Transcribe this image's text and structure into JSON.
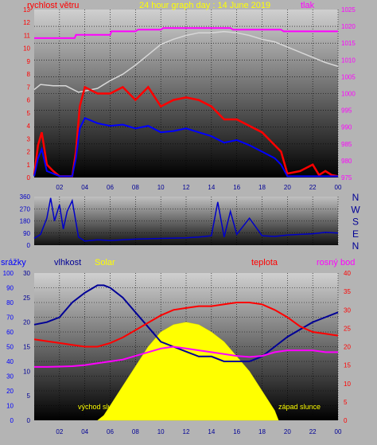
{
  "chart_data": [
    {
      "type": "line",
      "title": "24 hour graph day : 14 June 2019",
      "left_label": "rychlost větru",
      "right_label": "tlak",
      "x_ticks": [
        "02",
        "04",
        "06",
        "08",
        "10",
        "12",
        "14",
        "16",
        "18",
        "20",
        "22",
        "00"
      ],
      "left_ticks": [
        "0",
        "1",
        "2",
        "3",
        "4",
        "5",
        "6",
        "7",
        "8",
        "9",
        "10",
        "11",
        "12",
        "13"
      ],
      "right_ticks": [
        "975",
        "980",
        "985",
        "990",
        "995",
        "1000",
        "1005",
        "1010",
        "1015",
        "1020",
        "1025"
      ],
      "left_range": [
        0,
        13
      ],
      "right_range": [
        975,
        1025
      ],
      "series": [
        {
          "color": "#ff00ff",
          "x": [
            0,
            2,
            3.2,
            3.3,
            6,
            6.1,
            8,
            8.2,
            10,
            10.2,
            15.5,
            15.7,
            19.5,
            19.7,
            24
          ],
          "y": [
            1016.5,
            1016.5,
            1016.5,
            1017.5,
            1017.5,
            1018.5,
            1018.5,
            1019,
            1019,
            1019.5,
            1019.5,
            1019,
            1019,
            1018.5,
            1018.5
          ]
        },
        {
          "color": "#d8d8d8",
          "x": [
            0,
            0.5,
            1.5,
            2.5,
            3.5,
            4,
            5,
            6,
            7,
            8,
            9,
            10,
            11,
            12,
            13,
            14,
            15,
            16,
            17,
            18,
            19,
            20,
            21,
            22,
            23,
            24
          ],
          "y": [
            6.8,
            7.2,
            7.1,
            7.1,
            6.6,
            6.7,
            6.9,
            7.5,
            8,
            8.7,
            9.5,
            10.3,
            10.7,
            11,
            11.2,
            11.2,
            11.3,
            11.2,
            11,
            10.7,
            10.5,
            10.1,
            9.7,
            9.3,
            8.9,
            8.6
          ]
        },
        {
          "color": "#ff0000",
          "x": [
            0,
            0.3,
            0.6,
            1,
            1.5,
            2,
            2.5,
            3,
            3.3,
            3.6,
            4,
            5,
            6,
            7,
            8,
            9,
            10,
            11,
            12,
            13,
            14,
            15,
            16,
            17,
            18,
            19,
            19.5,
            20,
            21,
            22,
            22.5,
            23,
            23.5,
            24
          ],
          "y": [
            0.2,
            2.5,
            3.5,
            1,
            0.5,
            0.1,
            0.1,
            0.1,
            2,
            5.5,
            7,
            6.5,
            6.5,
            7,
            6,
            7,
            5.5,
            6,
            6.2,
            6,
            5.5,
            4.5,
            4.5,
            4,
            3.5,
            2.5,
            2,
            0.3,
            0.5,
            1,
            0.2,
            0.5,
            0.2,
            0.1
          ]
        },
        {
          "color": "#0000ff",
          "x": [
            0,
            0.3,
            0.6,
            1,
            1.5,
            2,
            2.5,
            3,
            3.3,
            3.6,
            4,
            5,
            6,
            7,
            8,
            9,
            10,
            11,
            12,
            13,
            14,
            15,
            16,
            17,
            18,
            19,
            19.5,
            20,
            21,
            22,
            23,
            24
          ],
          "y": [
            0.1,
            1.5,
            2.2,
            0.5,
            0.3,
            0.1,
            0.1,
            0.1,
            1.5,
            3.8,
            4.6,
            4.2,
            4,
            4.1,
            3.8,
            4,
            3.5,
            3.6,
            3.8,
            3.5,
            3.2,
            2.7,
            2.9,
            2.5,
            2,
            1.5,
            1,
            0.1,
            0.1,
            0.1,
            0.1,
            0.1
          ]
        }
      ]
    },
    {
      "type": "line",
      "y_ticks": [
        "0",
        "90",
        "180",
        "270",
        "360"
      ],
      "direction_ticks": [
        "N",
        "W",
        "S",
        "E",
        "N"
      ],
      "y_range": [
        0,
        360
      ],
      "series": [
        {
          "color": "#0000c8",
          "x": [
            0,
            0.5,
            1,
            1.3,
            1.6,
            2,
            2.3,
            2.6,
            3,
            3.5,
            4,
            5,
            6,
            8,
            10,
            12,
            13,
            14,
            14.5,
            15,
            15.5,
            16,
            17,
            18,
            19,
            20,
            21,
            22,
            23,
            24
          ],
          "y": [
            50,
            80,
            200,
            350,
            180,
            300,
            120,
            250,
            330,
            60,
            30,
            40,
            35,
            45,
            50,
            55,
            60,
            70,
            320,
            60,
            250,
            80,
            200,
            70,
            65,
            75,
            80,
            85,
            95,
            90
          ]
        }
      ]
    },
    {
      "type": "line",
      "labels": [
        "srážky",
        "vlhkost",
        "Solar",
        "teplota",
        "rosný bod"
      ],
      "annotations": [
        "východ slunce",
        "západ slunce"
      ],
      "far_left_ticks": [
        "0",
        "10",
        "20",
        "30",
        "40",
        "50",
        "60",
        "70",
        "80",
        "90",
        "100"
      ],
      "left_ticks": [
        "0",
        "5",
        "10",
        "15",
        "20",
        "25",
        "30"
      ],
      "right_ticks": [
        "0",
        "5",
        "10",
        "15",
        "20",
        "25",
        "30",
        "35",
        "40"
      ],
      "x_ticks": [
        "02",
        "04",
        "06",
        "08",
        "10",
        "12",
        "14",
        "16",
        "18",
        "20",
        "22",
        "00"
      ],
      "left_range": [
        0,
        30
      ],
      "right_range": [
        0,
        40
      ],
      "series": [
        {
          "name": "Solar",
          "color": "#ffff00",
          "x": [
            5,
            5.5,
            6,
            7,
            8,
            9,
            10,
            11,
            12,
            13,
            14,
            15,
            16,
            17,
            18,
            19,
            19.3
          ],
          "y": [
            0,
            1,
            3,
            7,
            11,
            15,
            18,
            19.5,
            20,
            19.5,
            18,
            16,
            13,
            10,
            6,
            2,
            0
          ]
        },
        {
          "name": "vlhkost",
          "color": "#000096",
          "x": [
            0,
            1,
            2,
            3,
            4,
            5,
            5.5,
            6,
            7,
            8,
            9,
            10,
            11,
            12,
            13,
            14,
            15,
            16,
            17,
            18,
            19,
            20,
            21,
            22,
            23,
            24
          ],
          "y": [
            19.5,
            20,
            21,
            24,
            26,
            27.5,
            27.5,
            27,
            25,
            22,
            19,
            16,
            15,
            14,
            13,
            13,
            12,
            12,
            12,
            13,
            15,
            17,
            18.5,
            20,
            21,
            22
          ]
        },
        {
          "name": "teplota",
          "color": "#ff0000",
          "x": [
            0,
            1,
            2,
            3,
            4,
            5,
            6,
            7,
            8,
            9,
            10,
            11,
            12,
            13,
            14,
            15,
            16,
            17,
            18,
            19,
            20,
            21,
            22,
            23,
            24
          ],
          "y": [
            22,
            21.5,
            21,
            20.5,
            20,
            20,
            21,
            22.5,
            24.5,
            26.5,
            28.5,
            30,
            30.5,
            31,
            31,
            31.5,
            32,
            32,
            31.5,
            30,
            28,
            25.5,
            24,
            23.5,
            23
          ]
        },
        {
          "name": "rosný bod",
          "color": "#ff00ff",
          "x": [
            0,
            1,
            2,
            3,
            4,
            5,
            6,
            7,
            8,
            9,
            10,
            11,
            12,
            13,
            14,
            15,
            16,
            17,
            18,
            19,
            20,
            21,
            22,
            23,
            24
          ],
          "y": [
            14.5,
            14.5,
            14.6,
            14.7,
            15,
            15.5,
            16,
            16.5,
            17.5,
            18.5,
            19.5,
            20,
            19.5,
            19,
            18.5,
            18,
            17.5,
            17.2,
            17.5,
            18.5,
            19,
            19,
            19,
            18.5,
            18.5
          ]
        }
      ]
    }
  ]
}
